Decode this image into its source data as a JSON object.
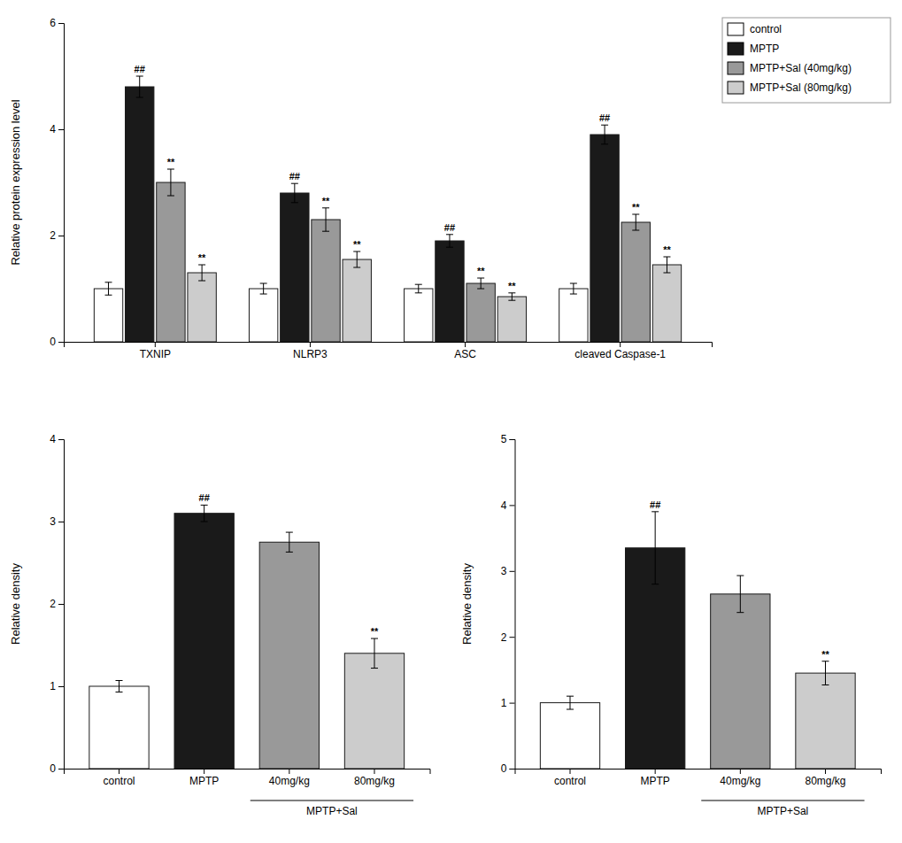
{
  "chart_data": [
    {
      "type": "bar",
      "ylabel": "Relative protein expression level",
      "categories": [
        "TXNIP",
        "NLRP3",
        "ASC",
        "cleaved Caspase-1"
      ],
      "series": [
        {
          "name": "control",
          "color": "#ffffff",
          "values": [
            1.0,
            1.0,
            1.0,
            1.0
          ],
          "errors": [
            0.12,
            0.1,
            0.08,
            0.1
          ]
        },
        {
          "name": "MPTP",
          "color": "#1a1a1a",
          "values": [
            4.8,
            2.8,
            1.9,
            3.9
          ],
          "errors": [
            0.2,
            0.18,
            0.12,
            0.18
          ]
        },
        {
          "name": "MPTP+Sal (40mg/kg)",
          "color": "#999999",
          "values": [
            3.0,
            2.3,
            1.1,
            2.25
          ],
          "errors": [
            0.25,
            0.22,
            0.1,
            0.15
          ]
        },
        {
          "name": "MPTP+Sal (80mg/kg)",
          "color": "#cccccc",
          "values": [
            1.3,
            1.55,
            0.85,
            1.45
          ],
          "errors": [
            0.15,
            0.15,
            0.07,
            0.15
          ]
        }
      ],
      "ylim": [
        0,
        6
      ],
      "yticks": [
        0,
        2,
        4,
        6
      ],
      "legend": "upper right",
      "annotations": [
        {
          "text": "##",
          "series": "MPTP",
          "category": "TXNIP"
        },
        {
          "text": "**",
          "series": "MPTP+Sal (40mg/kg)",
          "category": "TXNIP"
        },
        {
          "text": "**",
          "series": "MPTP+Sal (80mg/kg)",
          "category": "TXNIP"
        },
        {
          "text": "##",
          "series": "MPTP",
          "category": "NLRP3"
        },
        {
          "text": "**",
          "series": "MPTP+Sal (40mg/kg)",
          "category": "NLRP3"
        },
        {
          "text": "**",
          "series": "MPTP+Sal (80mg/kg)",
          "category": "NLRP3"
        },
        {
          "text": "##",
          "series": "MPTP",
          "category": "ASC"
        },
        {
          "text": "**",
          "series": "MPTP+Sal (40mg/kg)",
          "category": "ASC"
        },
        {
          "text": "**",
          "series": "MPTP+Sal (80mg/kg)",
          "category": "ASC"
        },
        {
          "text": "##",
          "series": "MPTP",
          "category": "cleaved Caspase-1"
        },
        {
          "text": "**",
          "series": "MPTP+Sal (40mg/kg)",
          "category": "cleaved Caspase-1"
        },
        {
          "text": "**",
          "series": "MPTP+Sal (80mg/kg)",
          "category": "cleaved Caspase-1"
        }
      ]
    },
    {
      "type": "bar",
      "ylabel": "Relative density",
      "categories": [
        "control",
        "MPTP",
        "40mg/kg",
        "80mg/kg"
      ],
      "values": [
        1.0,
        3.1,
        2.75,
        1.4
      ],
      "errors": [
        0.07,
        0.1,
        0.12,
        0.18
      ],
      "colors": [
        "#ffffff",
        "#1a1a1a",
        "#999999",
        "#cccccc"
      ],
      "ylim": [
        0,
        4
      ],
      "yticks": [
        0,
        1,
        2,
        3,
        4
      ],
      "annotations": [
        {
          "text": "##",
          "category": "MPTP"
        },
        {
          "text": "**",
          "category": "80mg/kg"
        },
        {
          "text": "MPTP+Sal",
          "categories": [
            "40mg/kg",
            "80mg/kg"
          ]
        }
      ]
    },
    {
      "type": "bar",
      "ylabel": "Relative density",
      "categories": [
        "control",
        "MPTP",
        "40mg/kg",
        "80mg/kg"
      ],
      "values": [
        1.0,
        3.35,
        2.65,
        1.45
      ],
      "errors": [
        0.1,
        0.55,
        0.28,
        0.18
      ],
      "colors": [
        "#ffffff",
        "#1a1a1a",
        "#999999",
        "#cccccc"
      ],
      "ylim": [
        0,
        5
      ],
      "yticks": [
        0,
        1,
        2,
        3,
        4,
        5
      ],
      "annotations": [
        {
          "text": "##",
          "category": "MPTP"
        },
        {
          "text": "**",
          "category": "80mg/kg"
        },
        {
          "text": "MPTP+Sal",
          "categories": [
            "40mg/kg",
            "80mg/kg"
          ]
        }
      ]
    }
  ]
}
